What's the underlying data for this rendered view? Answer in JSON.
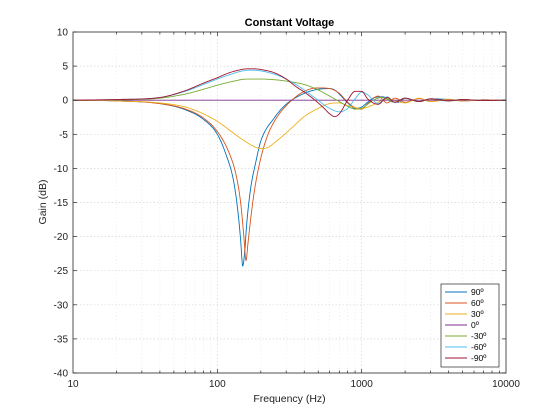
{
  "chart_data": {
    "type": "line",
    "title": "Constant Voltage",
    "xlabel": "Frequency (Hz)",
    "ylabel": "Gain (dB)",
    "x_scale": "log",
    "xlim": [
      10,
      10000
    ],
    "ylim": [
      -40,
      10
    ],
    "x_ticks": [
      10,
      100,
      1000,
      10000
    ],
    "x_tick_labels": [
      "10",
      "100",
      "1000",
      "10000"
    ],
    "y_ticks": [
      10,
      5,
      0,
      -5,
      -10,
      -15,
      -20,
      -25,
      -30,
      -35,
      -40
    ],
    "y_tick_labels": [
      "10",
      "5",
      "0",
      "-5",
      "-10",
      "-15",
      "-20",
      "-25",
      "-30",
      "-35",
      "-40"
    ],
    "grid": true,
    "legend_position": "bottom-right",
    "series": [
      {
        "name": "90º",
        "color": "#0072bd",
        "x": [
          10,
          20,
          40,
          60,
          80,
          100,
          115,
          130,
          140,
          145,
          150,
          155,
          160,
          170,
          185,
          200,
          250,
          300,
          400,
          500,
          600,
          650,
          700,
          800,
          900,
          1000,
          1100,
          1200,
          1400,
          1600,
          1800,
          2000,
          2500,
          3000,
          4000,
          5000,
          7000,
          10000
        ],
        "values": [
          0,
          -0.1,
          -0.5,
          -1.4,
          -2.8,
          -5,
          -8,
          -12,
          -17,
          -20.5,
          -24.3,
          -22,
          -18,
          -13,
          -9,
          -6,
          -2.5,
          -0.6,
          1,
          1.6,
          1.7,
          1.5,
          0.9,
          -0.4,
          -1.2,
          -1.0,
          -0.3,
          0.3,
          0.5,
          -0.2,
          -0.3,
          0.3,
          -0.2,
          0.2,
          0.1,
          -0.1,
          0.05,
          0
        ]
      },
      {
        "name": "60º",
        "color": "#d95319",
        "x": [
          10,
          20,
          40,
          60,
          80,
          100,
          120,
          135,
          145,
          152,
          158,
          163,
          170,
          180,
          195,
          220,
          250,
          300,
          400,
          500,
          600,
          700,
          800,
          900,
          1000,
          1100,
          1300,
          1500,
          1700,
          2000,
          2500,
          3000,
          4000,
          5000,
          7000,
          10000
        ],
        "values": [
          0,
          -0.1,
          -0.5,
          -1.3,
          -2.6,
          -4.6,
          -7.6,
          -11,
          -15,
          -19.5,
          -23.5,
          -21,
          -17.5,
          -13.5,
          -9.5,
          -5.5,
          -3,
          -0.8,
          1.3,
          1.8,
          1.7,
          1,
          -0.3,
          -1.1,
          -1.3,
          -0.5,
          0.6,
          -0.4,
          0.3,
          -0.3,
          0.25,
          -0.2,
          0.1,
          -0.1,
          0.05,
          0
        ]
      },
      {
        "name": "30º",
        "color": "#edb120",
        "x": [
          10,
          20,
          40,
          60,
          80,
          100,
          120,
          150,
          180,
          200,
          220,
          250,
          300,
          350,
          400,
          500,
          600,
          700,
          800,
          1000,
          1200,
          1500,
          2000,
          2500,
          3000,
          4000,
          5000,
          7000,
          10000
        ],
        "values": [
          0,
          -0.1,
          -0.4,
          -1,
          -2,
          -3.1,
          -4.3,
          -5.8,
          -6.8,
          -7.1,
          -7,
          -6.2,
          -4.8,
          -3.5,
          -2.4,
          -1.2,
          -0.5,
          -0.4,
          -0.8,
          -1.2,
          -0.7,
          0.2,
          -0.4,
          0.3,
          -0.2,
          0.15,
          -0.1,
          0.05,
          0
        ]
      },
      {
        "name": "0º",
        "color": "#7e2f8e",
        "x": [
          10,
          10000
        ],
        "values": [
          0,
          0
        ]
      },
      {
        "name": "-30º",
        "color": "#77ac30",
        "x": [
          10,
          20,
          40,
          60,
          80,
          100,
          130,
          160,
          200,
          250,
          300,
          400,
          500,
          600,
          700,
          800,
          900,
          1000,
          1100,
          1200,
          1400,
          1700,
          2000,
          2500,
          3000,
          4000,
          5000,
          7000,
          10000
        ],
        "values": [
          0,
          0.05,
          0.3,
          0.9,
          1.6,
          2.2,
          2.8,
          3.1,
          3.1,
          3,
          2.8,
          2.3,
          1.5,
          0.6,
          -0.2,
          -0.9,
          -1.3,
          -1.2,
          -0.6,
          0,
          0.4,
          -0.3,
          0.3,
          -0.2,
          0.15,
          -0.1,
          0.1,
          -0.05,
          0
        ]
      },
      {
        "name": "-60º",
        "color": "#4dbeee",
        "x": [
          10,
          20,
          40,
          60,
          80,
          100,
          120,
          150,
          170,
          200,
          250,
          300,
          350,
          400,
          450,
          500,
          550,
          600,
          700,
          800,
          900,
          1000,
          1100,
          1300,
          1500,
          1700,
          2000,
          2500,
          3000,
          4000,
          5000,
          7000,
          10000
        ],
        "values": [
          0,
          0.1,
          0.4,
          1.3,
          2.3,
          3.1,
          3.7,
          4.3,
          4.4,
          4.3,
          3.8,
          3.1,
          2.3,
          1.5,
          0.7,
          0,
          -0.7,
          -1.2,
          -1.7,
          -1.2,
          0.2,
          1.2,
          0.8,
          -0.5,
          0.5,
          -0.3,
          0.3,
          -0.2,
          0.2,
          -0.1,
          0.1,
          -0.05,
          0
        ]
      },
      {
        "name": "-90º",
        "color": "#a2142f",
        "x": [
          10,
          20,
          40,
          60,
          80,
          100,
          120,
          140,
          160,
          180,
          200,
          250,
          300,
          350,
          400,
          450,
          500,
          550,
          600,
          650,
          700,
          800,
          900,
          1000,
          1100,
          1300,
          1500,
          1700,
          2000,
          2500,
          3000,
          4000,
          5000,
          7000,
          10000
        ],
        "values": [
          0,
          0.1,
          0.4,
          1.4,
          2.5,
          3.3,
          4,
          4.4,
          4.6,
          4.6,
          4.5,
          4,
          3.1,
          2,
          1.2,
          0.4,
          -0.4,
          -1.2,
          -2,
          -2.4,
          -2,
          0,
          1.3,
          1.3,
          0.2,
          -0.6,
          0.4,
          -0.3,
          0.3,
          -0.2,
          0.2,
          -0.1,
          0.1,
          -0.05,
          0
        ]
      }
    ]
  }
}
